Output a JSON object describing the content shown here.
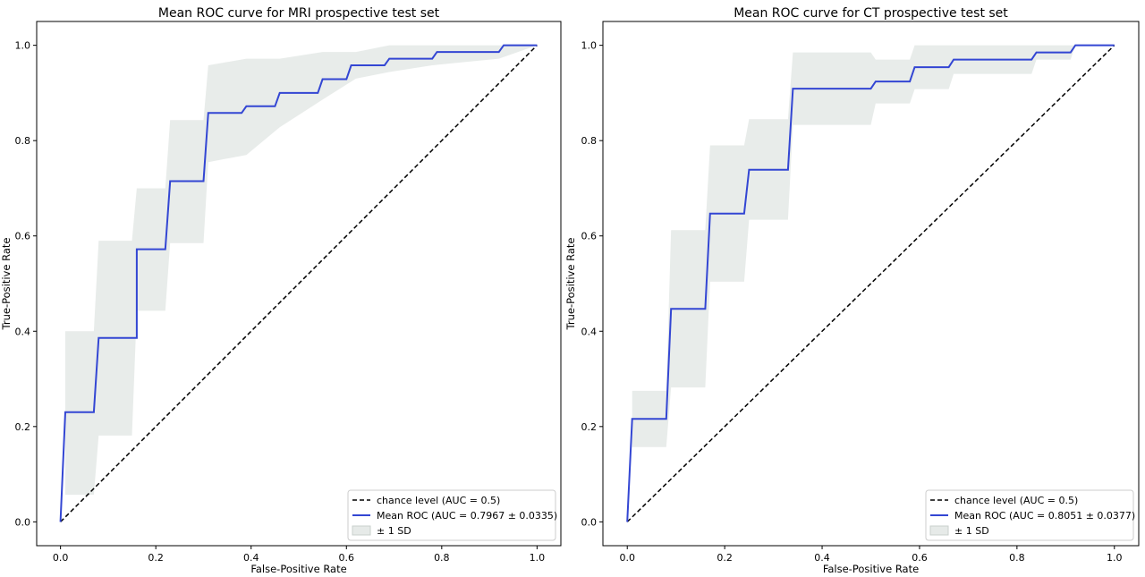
{
  "chart_data": [
    {
      "type": "line",
      "title": "Mean ROC curve for MRI prospective test set",
      "xlabel": "False-Positive Rate",
      "ylabel": "True-Positive Rate",
      "xlim": [
        -0.05,
        1.05
      ],
      "ylim": [
        -0.05,
        1.05
      ],
      "xticks": [
        "0.0",
        "0.2",
        "0.4",
        "0.6",
        "0.8",
        "1.0"
      ],
      "yticks": [
        "0.0",
        "0.2",
        "0.4",
        "0.6",
        "0.8",
        "1.0"
      ],
      "grid": false,
      "legend_position": "bottom-right",
      "legend": {
        "chance": "chance level (AUC = 0.5)",
        "mean": "Mean ROC (AUC = 0.7967 ± 0.0335)",
        "band": "± 1 SD"
      },
      "colors": {
        "mean": "#3346d3",
        "chance": "#000000",
        "band": "#d5dcd9"
      },
      "series": [
        {
          "name": "Mean ROC (AUC = 0.7967 ± 0.0335)",
          "x": [
            0.0,
            0.01,
            0.07,
            0.08,
            0.16,
            0.16,
            0.22,
            0.23,
            0.3,
            0.31,
            0.38,
            0.39,
            0.45,
            0.46,
            0.54,
            0.55,
            0.6,
            0.61,
            0.68,
            0.69,
            0.78,
            0.79,
            0.92,
            0.93,
            1.0
          ],
          "y": [
            0.0,
            0.23,
            0.23,
            0.386,
            0.386,
            0.572,
            0.572,
            0.715,
            0.715,
            0.858,
            0.858,
            0.872,
            0.872,
            0.9,
            0.9,
            0.929,
            0.929,
            0.958,
            0.958,
            0.972,
            0.972,
            0.986,
            0.986,
            1.0,
            1.0
          ]
        },
        {
          "name": "chance level (AUC = 0.5)",
          "x": [
            0.0,
            1.0
          ],
          "y": [
            0.0,
            1.0
          ]
        },
        {
          "name": "± 1 SD",
          "x": [
            0.01,
            0.07,
            0.08,
            0.15,
            0.16,
            0.22,
            0.23,
            0.3,
            0.31,
            0.39,
            0.46,
            0.55,
            0.62,
            0.69,
            0.78,
            0.92,
            1.0
          ],
          "upper": [
            0.4,
            0.4,
            0.59,
            0.59,
            0.7,
            0.7,
            0.843,
            0.843,
            0.958,
            0.972,
            0.972,
            0.986,
            0.986,
            1.0,
            1.0,
            1.0,
            1.0
          ],
          "lower": [
            0.057,
            0.057,
            0.181,
            0.181,
            0.443,
            0.443,
            0.585,
            0.585,
            0.755,
            0.77,
            0.828,
            0.886,
            0.93,
            0.944,
            0.958,
            0.972,
            1.0
          ]
        }
      ]
    },
    {
      "type": "line",
      "title": "Mean ROC curve for CT prospective test set",
      "xlabel": "False-Positive Rate",
      "ylabel": "True-Positive Rate",
      "xlim": [
        -0.05,
        1.05
      ],
      "ylim": [
        -0.05,
        1.05
      ],
      "xticks": [
        "0.0",
        "0.2",
        "0.4",
        "0.6",
        "0.8",
        "1.0"
      ],
      "yticks": [
        "0.0",
        "0.2",
        "0.4",
        "0.6",
        "0.8",
        "1.0"
      ],
      "grid": false,
      "legend_position": "bottom-right",
      "legend": {
        "chance": "chance level (AUC = 0.5)",
        "mean": "Mean ROC (AUC = 0.8051 ± 0.0377)",
        "band": "± 1 SD"
      },
      "colors": {
        "mean": "#3346d3",
        "chance": "#000000",
        "band": "#d5dcd9"
      },
      "series": [
        {
          "name": "Mean ROC (AUC = 0.8051 ± 0.0377)",
          "x": [
            0.0,
            0.01,
            0.08,
            0.09,
            0.16,
            0.17,
            0.24,
            0.25,
            0.33,
            0.34,
            0.5,
            0.51,
            0.58,
            0.59,
            0.66,
            0.67,
            0.83,
            0.84,
            0.91,
            0.92,
            1.0
          ],
          "y": [
            0.0,
            0.216,
            0.216,
            0.447,
            0.447,
            0.647,
            0.647,
            0.739,
            0.739,
            0.909,
            0.909,
            0.924,
            0.924,
            0.954,
            0.954,
            0.97,
            0.97,
            0.985,
            0.985,
            1.0,
            1.0
          ]
        },
        {
          "name": "chance level (AUC = 0.5)",
          "x": [
            0.0,
            1.0
          ],
          "y": [
            0.0,
            1.0
          ]
        },
        {
          "name": "± 1 SD",
          "x": [
            0.01,
            0.08,
            0.09,
            0.16,
            0.17,
            0.24,
            0.25,
            0.33,
            0.34,
            0.5,
            0.51,
            0.58,
            0.59,
            0.66,
            0.67,
            0.83,
            0.84,
            0.91,
            0.92,
            1.0
          ],
          "upper": [
            0.275,
            0.275,
            0.612,
            0.612,
            0.79,
            0.79,
            0.845,
            0.845,
            0.985,
            0.985,
            0.97,
            0.97,
            1.0,
            1.0,
            1.0,
            1.0,
            1.0,
            1.0,
            1.0,
            1.0
          ],
          "lower": [
            0.157,
            0.157,
            0.282,
            0.282,
            0.504,
            0.504,
            0.634,
            0.634,
            0.833,
            0.833,
            0.878,
            0.878,
            0.908,
            0.908,
            0.94,
            0.94,
            0.97,
            0.97,
            1.0,
            1.0
          ]
        }
      ]
    }
  ]
}
